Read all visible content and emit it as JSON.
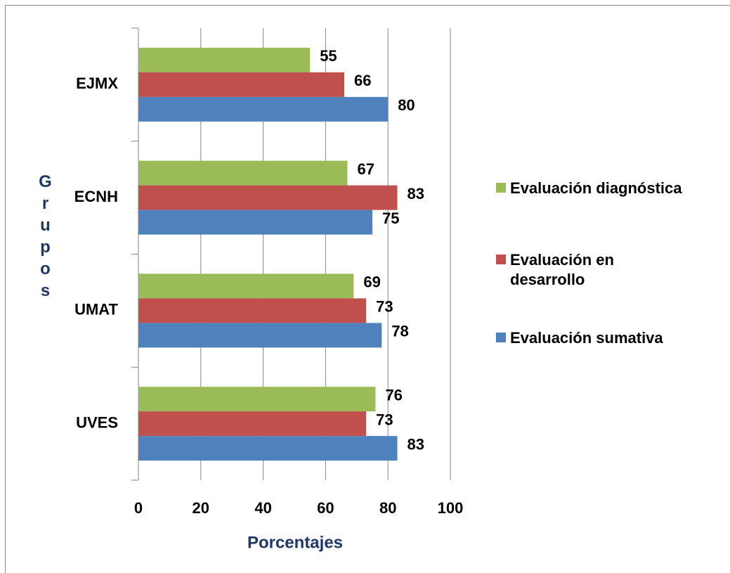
{
  "chart_data": {
    "type": "bar",
    "orientation": "horizontal",
    "x_label": "Porcentajes",
    "y_label": "Grupos",
    "categories": [
      "EJMX",
      "ECNH",
      "UMAT",
      "UVES"
    ],
    "series": [
      {
        "name": "Evaluación diagnóstica",
        "color": "#9bbb59",
        "values": [
          55,
          67,
          69,
          76
        ]
      },
      {
        "name": "Evaluación en desarrollo",
        "color": "#c0504d",
        "values": [
          66,
          83,
          73,
          73
        ]
      },
      {
        "name": "Evaluación sumativa",
        "color": "#4f81bd",
        "values": [
          80,
          75,
          78,
          83
        ]
      }
    ],
    "xlim": [
      0,
      100
    ],
    "xticks": [
      0,
      20,
      40,
      60,
      80,
      100
    ],
    "grid": true,
    "legend": "right"
  }
}
